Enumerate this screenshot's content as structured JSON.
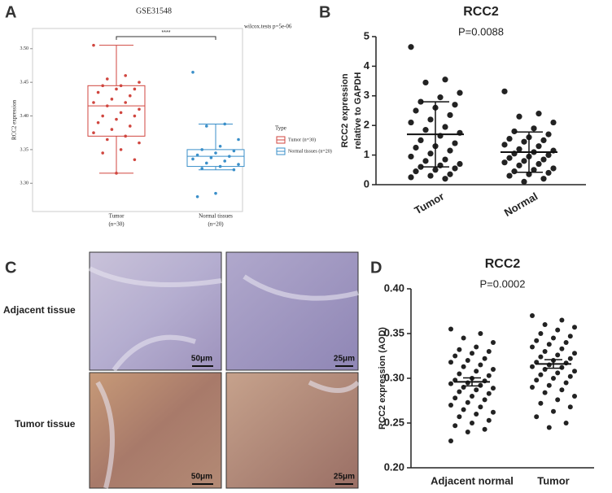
{
  "panel_labels": [
    "A",
    "B",
    "C",
    "D"
  ],
  "chart_data": [
    {
      "type": "box",
      "title": "GSE31548",
      "annotation": "wilcox.tests p=5e-06",
      "significance": "****",
      "ylabel": "RCC2 expression",
      "legend_title": "Type",
      "ylim": [
        3.258,
        3.53
      ],
      "yticks": [
        {
          "value": 3.3,
          "label": "3.30"
        },
        {
          "value": 3.35,
          "label": "3.35"
        },
        {
          "value": 3.4,
          "label": "3.40"
        },
        {
          "value": 3.45,
          "label": "3.45"
        },
        {
          "value": 3.5,
          "label": "3.50"
        }
      ],
      "categories": [
        "Tumor",
        "Normal tissues"
      ],
      "category_notes": [
        "(n=30)",
        "(n=20)"
      ],
      "series": [
        {
          "name": "Tumor (n=30)",
          "color": "#d0463f",
          "values": [
            3.505,
            3.46,
            3.455,
            3.45,
            3.445,
            3.445,
            3.44,
            3.44,
            3.435,
            3.43,
            3.425,
            3.42,
            3.42,
            3.415,
            3.41,
            3.405,
            3.4,
            3.4,
            3.395,
            3.39,
            3.385,
            3.38,
            3.375,
            3.37,
            3.365,
            3.36,
            3.35,
            3.345,
            3.335,
            3.315
          ],
          "box": {
            "whisker_low": 3.315,
            "q1": 3.37,
            "median": 3.415,
            "q3": 3.445,
            "whisker_high": 3.505
          }
        },
        {
          "name": "Normal tissues (n=20)",
          "color": "#3a8fc9",
          "values": [
            3.465,
            3.388,
            3.385,
            3.365,
            3.355,
            3.35,
            3.348,
            3.345,
            3.342,
            3.34,
            3.338,
            3.336,
            3.333,
            3.33,
            3.328,
            3.325,
            3.322,
            3.32,
            3.285,
            3.28
          ],
          "box": {
            "whisker_low": 3.32,
            "q1": 3.325,
            "median": 3.34,
            "q3": 3.35,
            "whisker_high": 3.388
          }
        }
      ]
    },
    {
      "type": "dot",
      "title": "RCC2",
      "subtitle": "P=0.0088",
      "ylabel": [
        "RCC2 expression",
        "relative to GAPDH"
      ],
      "categories": [
        "Tumor",
        "Normal"
      ],
      "ylim": [
        0,
        5
      ],
      "yticks": [
        0,
        1,
        2,
        3,
        4,
        5
      ],
      "color": "#222222",
      "groups": [
        {
          "values": [
            4.65,
            3.55,
            3.45,
            3.1,
            2.95,
            2.8,
            2.7,
            2.6,
            2.5,
            2.35,
            2.2,
            2.1,
            1.95,
            1.85,
            1.75,
            1.65,
            1.5,
            1.4,
            1.3,
            1.25,
            1.15,
            1.05,
            0.95,
            0.85,
            0.8,
            0.7,
            0.65,
            0.6,
            0.55,
            0.5,
            0.45,
            0.35,
            0.3,
            0.25,
            0.2
          ],
          "mean": 1.7,
          "sd": 1.1
        },
        {
          "values": [
            3.15,
            2.4,
            2.3,
            2.1,
            1.9,
            1.8,
            1.7,
            1.6,
            1.55,
            1.5,
            1.45,
            1.35,
            1.3,
            1.2,
            1.15,
            1.1,
            1.05,
            1.0,
            0.95,
            0.9,
            0.85,
            0.8,
            0.75,
            0.7,
            0.65,
            0.55,
            0.5,
            0.45,
            0.4,
            0.35,
            0.3,
            0.2,
            0.1
          ],
          "mean": 1.1,
          "sd": 0.68
        }
      ]
    },
    {
      "type": "dot",
      "title": "RCC2",
      "subtitle": "P=0.0002",
      "ylabel": [
        "RCC2 expression (AOD)"
      ],
      "categories": [
        "Adjacent normal",
        "Tumor"
      ],
      "ylim": [
        0.2,
        0.4
      ],
      "yticks": [
        {
          "value": 0.2,
          "label": "0.20"
        },
        0.25,
        {
          "value": 0.3,
          "label": "0.30"
        },
        0.35,
        {
          "value": 0.4,
          "label": "0.40"
        }
      ],
      "color": "#222222",
      "groups": [
        {
          "values": [
            0.355,
            0.35,
            0.345,
            0.34,
            0.335,
            0.332,
            0.33,
            0.328,
            0.325,
            0.322,
            0.32,
            0.318,
            0.315,
            0.313,
            0.31,
            0.308,
            0.305,
            0.303,
            0.3,
            0.298,
            0.297,
            0.295,
            0.294,
            0.292,
            0.29,
            0.289,
            0.287,
            0.285,
            0.283,
            0.28,
            0.278,
            0.276,
            0.273,
            0.27,
            0.268,
            0.265,
            0.262,
            0.26,
            0.257,
            0.253,
            0.25,
            0.247,
            0.243,
            0.24,
            0.23
          ],
          "mean": 0.296,
          "sem": 0.0045
        },
        {
          "values": [
            0.37,
            0.365,
            0.36,
            0.357,
            0.354,
            0.35,
            0.347,
            0.345,
            0.342,
            0.34,
            0.338,
            0.335,
            0.333,
            0.33,
            0.328,
            0.326,
            0.324,
            0.322,
            0.32,
            0.318,
            0.317,
            0.315,
            0.313,
            0.312,
            0.31,
            0.308,
            0.306,
            0.304,
            0.302,
            0.3,
            0.298,
            0.295,
            0.292,
            0.29,
            0.287,
            0.284,
            0.28,
            0.276,
            0.272,
            0.268,
            0.263,
            0.257,
            0.25,
            0.245
          ],
          "mean": 0.316,
          "sem": 0.0048
        }
      ]
    }
  ],
  "histology": {
    "rows": [
      "Adjacent tissue",
      "Tumor tissue"
    ],
    "scale_bars": [
      [
        "50μm",
        "25μm"
      ],
      [
        "50μm",
        "25μm"
      ]
    ]
  }
}
